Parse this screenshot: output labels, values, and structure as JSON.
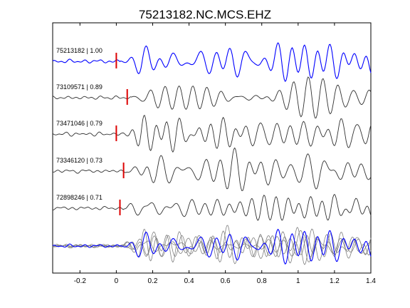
{
  "chart_data": {
    "type": "line",
    "title": "75213182.NC.MCS.EHZ",
    "xlabel": "",
    "ylabel": "",
    "xlim": [
      -0.35,
      1.4
    ],
    "xticks": [
      -0.2,
      0,
      0.2,
      0.4,
      0.6,
      0.8,
      1,
      1.2,
      1.4
    ],
    "xtick_labels": [
      "-0.2",
      "0",
      "0.2",
      "0.4",
      "0.6",
      "0.8",
      "1",
      "1.2",
      "1.4"
    ],
    "grid": false,
    "colors": {
      "reference": "#0000ff",
      "trace": "#303030",
      "overlay": "#808080",
      "pick": "#dd0000",
      "axes": "#000000"
    },
    "series": [
      {
        "label": "75213182 | 1.00",
        "event_id": "75213182",
        "correlation": 1.0,
        "pick_time": 0.0,
        "seed": 1
      },
      {
        "label": "73109571 | 0.89",
        "event_id": "73109571",
        "correlation": 0.89,
        "pick_time": 0.06,
        "seed": 2
      },
      {
        "label": "73471046 | 0.79",
        "event_id": "73471046",
        "correlation": 0.79,
        "pick_time": 0.0,
        "seed": 3
      },
      {
        "label": "73346120 | 0.73",
        "event_id": "73346120",
        "correlation": 0.73,
        "pick_time": 0.04,
        "seed": 4
      },
      {
        "label": "72898246 | 0.71",
        "event_id": "72898246",
        "correlation": 0.71,
        "pick_time": 0.02,
        "seed": 5
      }
    ],
    "stack": {
      "description": "overlay of all traces aligned at pick"
    }
  }
}
